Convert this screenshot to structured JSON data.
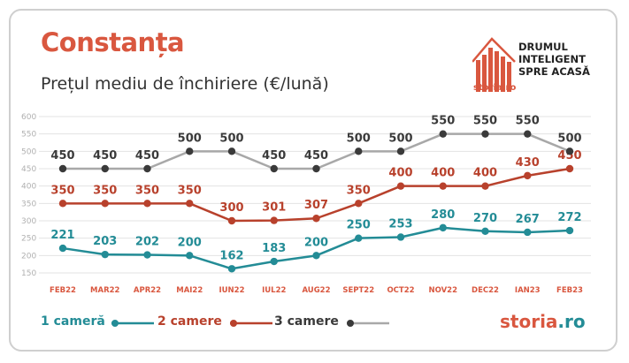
{
  "header": {
    "title": "Constanța",
    "subtitle": "Prețul mediu de închiriere (€/lună)"
  },
  "brand": {
    "tagline": "DRUMUL\nINTELIGENT\nSPRE ACASĂ",
    "small_logo": "storia.ro",
    "logo_part1": "storia",
    "logo_part2": ".ro"
  },
  "colors": {
    "one_room": "#238c96",
    "two_rooms": "#b8412c",
    "three_rooms": "#3a3a3a",
    "three_rooms_line": "#a8a8a8",
    "accent": "#d9573f",
    "grid": "#e3e3e3",
    "tick": "#b0b0b0"
  },
  "chart_data": {
    "type": "line",
    "categories": [
      "FEB22",
      "MAR22",
      "APR22",
      "MAI22",
      "IUN22",
      "IUL22",
      "AUG22",
      "SEPT22",
      "OCT22",
      "NOV22",
      "DEC22",
      "IAN23",
      "FEB23"
    ],
    "ylim": [
      150,
      600
    ],
    "yticks": [
      150,
      200,
      250,
      300,
      350,
      400,
      450,
      500,
      550,
      600
    ],
    "grid": true,
    "legend_position": "bottom-left",
    "series": [
      {
        "name": "1 cameră",
        "values": [
          221,
          203,
          202,
          200,
          162,
          183,
          200,
          250,
          253,
          280,
          270,
          267,
          272
        ]
      },
      {
        "name": "2 camere",
        "values": [
          350,
          350,
          350,
          350,
          300,
          301,
          307,
          350,
          400,
          400,
          400,
          430,
          450
        ]
      },
      {
        "name": "3 camere",
        "values": [
          450,
          450,
          450,
          500,
          500,
          450,
          450,
          500,
          500,
          550,
          550,
          550,
          500
        ]
      }
    ]
  }
}
